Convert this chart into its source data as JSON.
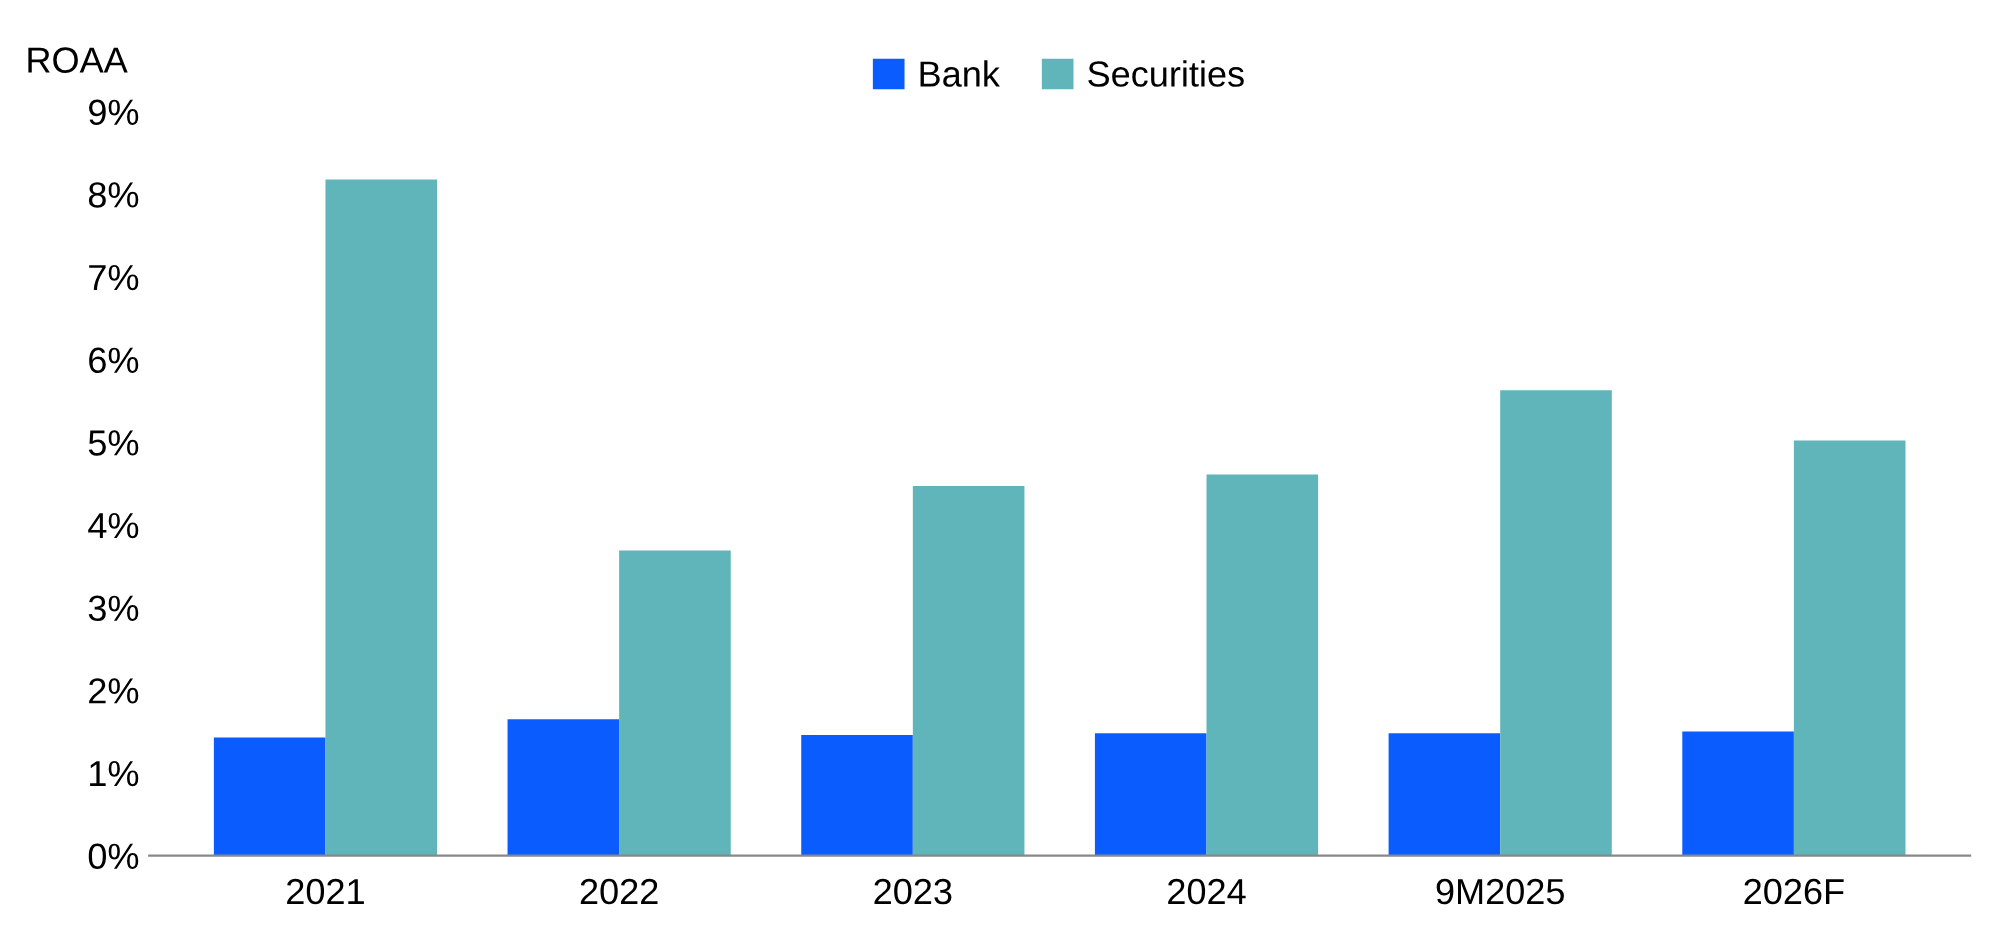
{
  "chart_data": {
    "type": "bar",
    "ylabel": "ROAA",
    "categories": [
      "2021",
      "2022",
      "2023",
      "2024",
      "9M2025",
      "2026F"
    ],
    "series": [
      {
        "name": "Bank",
        "color": "#0a5cff",
        "values": [
          1.43,
          1.65,
          1.46,
          1.48,
          1.48,
          1.5
        ]
      },
      {
        "name": "Securities",
        "color": "#5fb5ba",
        "values": [
          8.18,
          3.69,
          4.47,
          4.61,
          5.63,
          5.02
        ]
      }
    ],
    "ylim": [
      0,
      9
    ],
    "yticks": [
      {
        "value": 0,
        "label": "0%"
      },
      {
        "value": 1,
        "label": "1%"
      },
      {
        "value": 2,
        "label": "2%"
      },
      {
        "value": 3,
        "label": "3%"
      },
      {
        "value": 4,
        "label": "4%"
      },
      {
        "value": 5,
        "label": "5%"
      },
      {
        "value": 6,
        "label": "6%"
      },
      {
        "value": 7,
        "label": "7%"
      },
      {
        "value": 8,
        "label": "8%"
      },
      {
        "value": 9,
        "label": "9%"
      }
    ],
    "grid": false,
    "legend": "top"
  }
}
